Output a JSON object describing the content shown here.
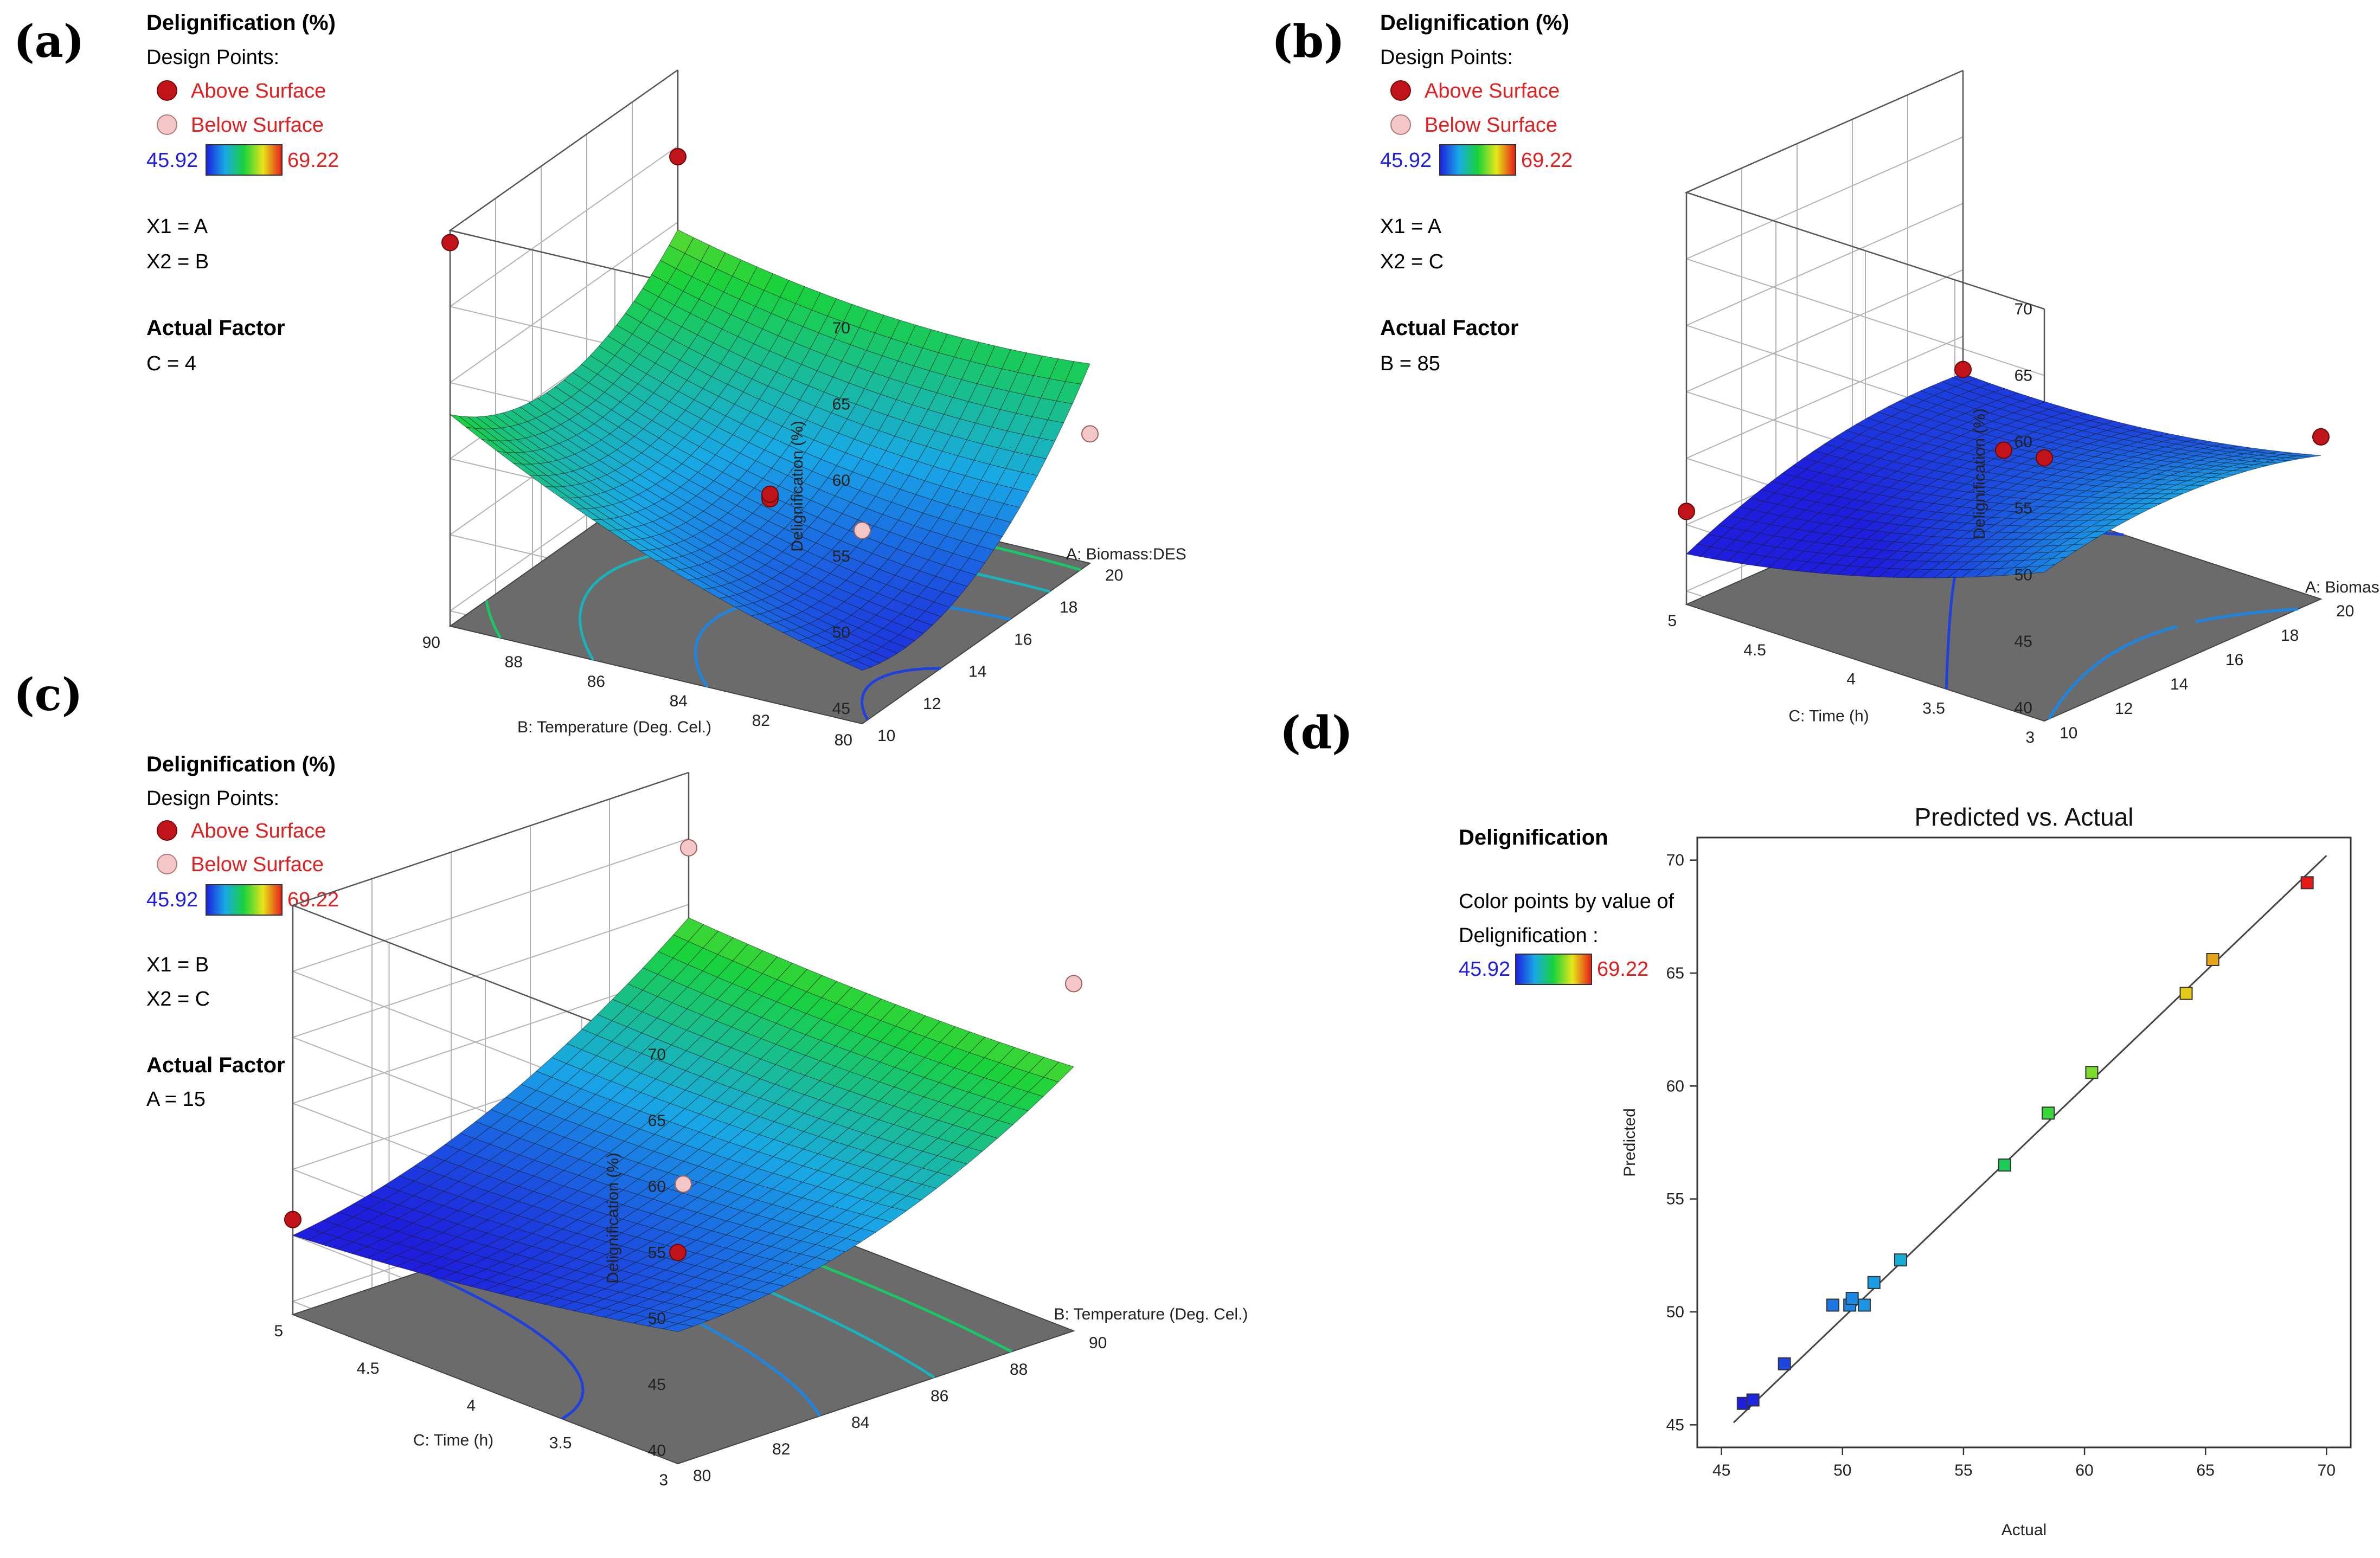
{
  "panel_labels": [
    "(a)",
    "(b)",
    "(c)",
    "(d)"
  ],
  "colors": {
    "above_surface": "#c0141a",
    "below_surface": "#f3c7c7",
    "floor": "#6b6b6b",
    "min_label": "#1e1ee0",
    "max_label": "#e02020"
  },
  "colorbar": {
    "min": "45.92",
    "max": "69.22",
    "min_value": 45.92,
    "max_value": 69.22
  },
  "panels": {
    "a": {
      "legend": {
        "title": "Delignification  (%)",
        "design_points": "Design Points:",
        "above": "Above Surface",
        "below": "Below Surface",
        "x1": "X1 = A",
        "x2": "X2 = B",
        "actual_factor": "Actual Factor",
        "factor_value": "C = 4"
      }
    },
    "b": {
      "legend": {
        "title": "Delignification  (%)",
        "design_points": "Design Points:",
        "above": "Above Surface",
        "below": "Below Surface",
        "x1": "X1 = A",
        "x2": "X2 = C",
        "actual_factor": "Actual Factor",
        "factor_value": "B = 85"
      }
    },
    "c": {
      "legend": {
        "title": "Delignification  (%)",
        "design_points": "Design Points:",
        "above": "Above Surface",
        "below": "Below Surface",
        "x1": "X1 = B",
        "x2": "X2 = C",
        "actual_factor": "Actual Factor",
        "factor_value": "A = 15"
      }
    },
    "d": {
      "legend": {
        "title": "Delignification",
        "line1": "Color points by value of",
        "line2": "Delignification :"
      }
    }
  },
  "chart_data": [
    {
      "panel": "a",
      "type": "surface3d",
      "zlabel": "Delignification  (%)",
      "xlabel": "A: Biomass:DES",
      "ylabel": "B: Temperature (Deg. Cel.)",
      "x_ticks": [
        "10",
        "12",
        "14",
        "16",
        "18",
        "20"
      ],
      "y_ticks": [
        "80",
        "82",
        "84",
        "86",
        "88",
        "90"
      ],
      "z_ticks": [
        "45",
        "50",
        "55",
        "60",
        "65",
        "70"
      ],
      "x_range": [
        10,
        20
      ],
      "y_range": [
        80,
        90
      ],
      "z_range": [
        44,
        70
      ],
      "x_var": "A",
      "y_var": "B",
      "fixed": "C = 4",
      "design_points": [
        {
          "x": 10,
          "y": 90,
          "z": 69.2,
          "pos": "above"
        },
        {
          "x": 20,
          "y": 90,
          "z": 64.3,
          "pos": "above"
        },
        {
          "x": 15,
          "y": 85,
          "z": 50.3,
          "pos": "above"
        },
        {
          "x": 15,
          "y": 85,
          "z": 50.6,
          "pos": "above"
        },
        {
          "x": 10,
          "y": 80,
          "z": 56.7,
          "pos": "below"
        },
        {
          "x": 20,
          "y": 80,
          "z": 52.5,
          "pos": "below"
        }
      ]
    },
    {
      "panel": "b",
      "type": "surface3d",
      "zlabel": "Delignification  (%)",
      "xlabel": "A: Biomass:DES",
      "ylabel": "C: Time (h)",
      "x_ticks": [
        "10",
        "12",
        "14",
        "16",
        "18",
        "20"
      ],
      "y_ticks": [
        "3",
        "3.5",
        "4",
        "4.5",
        "5"
      ],
      "z_ticks": [
        "40",
        "45",
        "50",
        "55",
        "60",
        "65",
        "70"
      ],
      "x_range": [
        10,
        20
      ],
      "y_range": [
        3,
        5
      ],
      "z_range": [
        39,
        70
      ],
      "x_var": "A",
      "y_var": "C",
      "fixed": "B = 85",
      "design_points": [
        {
          "x": 10,
          "y": 5,
          "z": 46.0,
          "pos": "above"
        },
        {
          "x": 10,
          "y": 3,
          "z": 58.8,
          "pos": "above"
        },
        {
          "x": 15,
          "y": 4,
          "z": 50.4,
          "pos": "above"
        },
        {
          "x": 20,
          "y": 3,
          "z": 51.2,
          "pos": "above"
        },
        {
          "x": 20,
          "y": 5,
          "z": 47.5,
          "pos": "above"
        }
      ]
    },
    {
      "panel": "c",
      "type": "surface3d",
      "zlabel": "Delignification  (%)",
      "xlabel": "B: Temperature (Deg. Cel.)",
      "ylabel": "C: Time (h)",
      "x_ticks": [
        "80",
        "82",
        "84",
        "86",
        "88",
        "90"
      ],
      "y_ticks": [
        "3",
        "3.5",
        "4",
        "4.5",
        "5"
      ],
      "z_ticks": [
        "40",
        "45",
        "50",
        "55",
        "60",
        "65",
        "70"
      ],
      "x_range": [
        80,
        90
      ],
      "y_range": [
        3,
        5
      ],
      "z_range": [
        39,
        70
      ],
      "x_var": "B",
      "y_var": "C",
      "fixed": "A = 15",
      "design_points": [
        {
          "x": 80,
          "y": 5,
          "z": 46.2,
          "pos": "above"
        },
        {
          "x": 80,
          "y": 3,
          "z": 55.0,
          "pos": "above"
        },
        {
          "x": 85,
          "y": 4,
          "z": 49.5,
          "pos": "below"
        },
        {
          "x": 90,
          "y": 3,
          "z": 65.3,
          "pos": "below"
        },
        {
          "x": 90,
          "y": 5,
          "z": 64.3,
          "pos": "below"
        }
      ]
    },
    {
      "panel": "d",
      "type": "scatter",
      "title": "Predicted vs. Actual",
      "xlabel": "Actual",
      "ylabel": "Predicted",
      "x_ticks": [
        "45",
        "50",
        "55",
        "60",
        "65",
        "70"
      ],
      "y_ticks": [
        "45",
        "50",
        "55",
        "60",
        "65",
        "70"
      ],
      "xlim": [
        44,
        71
      ],
      "ylim": [
        44,
        71
      ],
      "reference_line": [
        [
          45.5,
          45.1
        ],
        [
          70,
          70.2
        ]
      ],
      "points": [
        {
          "x": 45.9,
          "y": 45.95
        },
        {
          "x": 46.3,
          "y": 46.1
        },
        {
          "x": 47.6,
          "y": 47.7
        },
        {
          "x": 49.6,
          "y": 50.3
        },
        {
          "x": 50.3,
          "y": 50.3
        },
        {
          "x": 50.4,
          "y": 50.6
        },
        {
          "x": 50.9,
          "y": 50.3
        },
        {
          "x": 51.3,
          "y": 51.3
        },
        {
          "x": 52.4,
          "y": 52.3
        },
        {
          "x": 56.7,
          "y": 56.5
        },
        {
          "x": 58.5,
          "y": 58.8
        },
        {
          "x": 60.3,
          "y": 60.6
        },
        {
          "x": 64.2,
          "y": 64.1
        },
        {
          "x": 65.3,
          "y": 65.6
        },
        {
          "x": 69.2,
          "y": 69.0
        }
      ]
    }
  ]
}
